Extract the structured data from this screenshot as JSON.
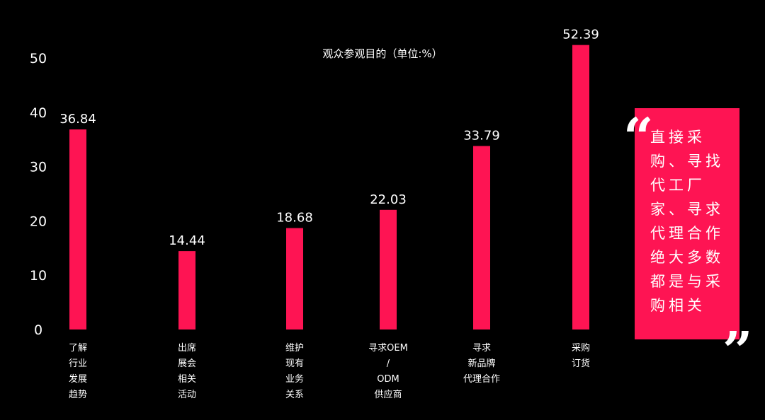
{
  "chart_data": {
    "type": "bar",
    "title": "观众参观目的（单位:%）",
    "categories": [
      "了解\n行业\n发展\n趋势",
      "出席\n展会\n相关\n活动",
      "维护\n现有\n业务\n关系",
      "寻求OEM\n/\nODM\n供应商",
      "寻求\n新品牌\n代理合作",
      "采购\n订货"
    ],
    "values": [
      36.84,
      14.44,
      18.68,
      22.03,
      33.79,
      52.39
    ],
    "value_labels": [
      "36.84",
      "14.44",
      "18.68",
      "22.03",
      "33.79",
      "52.39"
    ],
    "y_ticks": [
      "0",
      "10",
      "20",
      "30",
      "40",
      "50"
    ],
    "ylim": [
      0,
      54
    ],
    "grid": false,
    "bar_color": "#fe1453",
    "background": "#000000"
  },
  "callout": {
    "text": "直接采购、寻找代工厂家、寻求代理合作绝大多数都是与采购相关",
    "open_quote": "“",
    "close_quote": "”",
    "color": "#fe1453"
  }
}
